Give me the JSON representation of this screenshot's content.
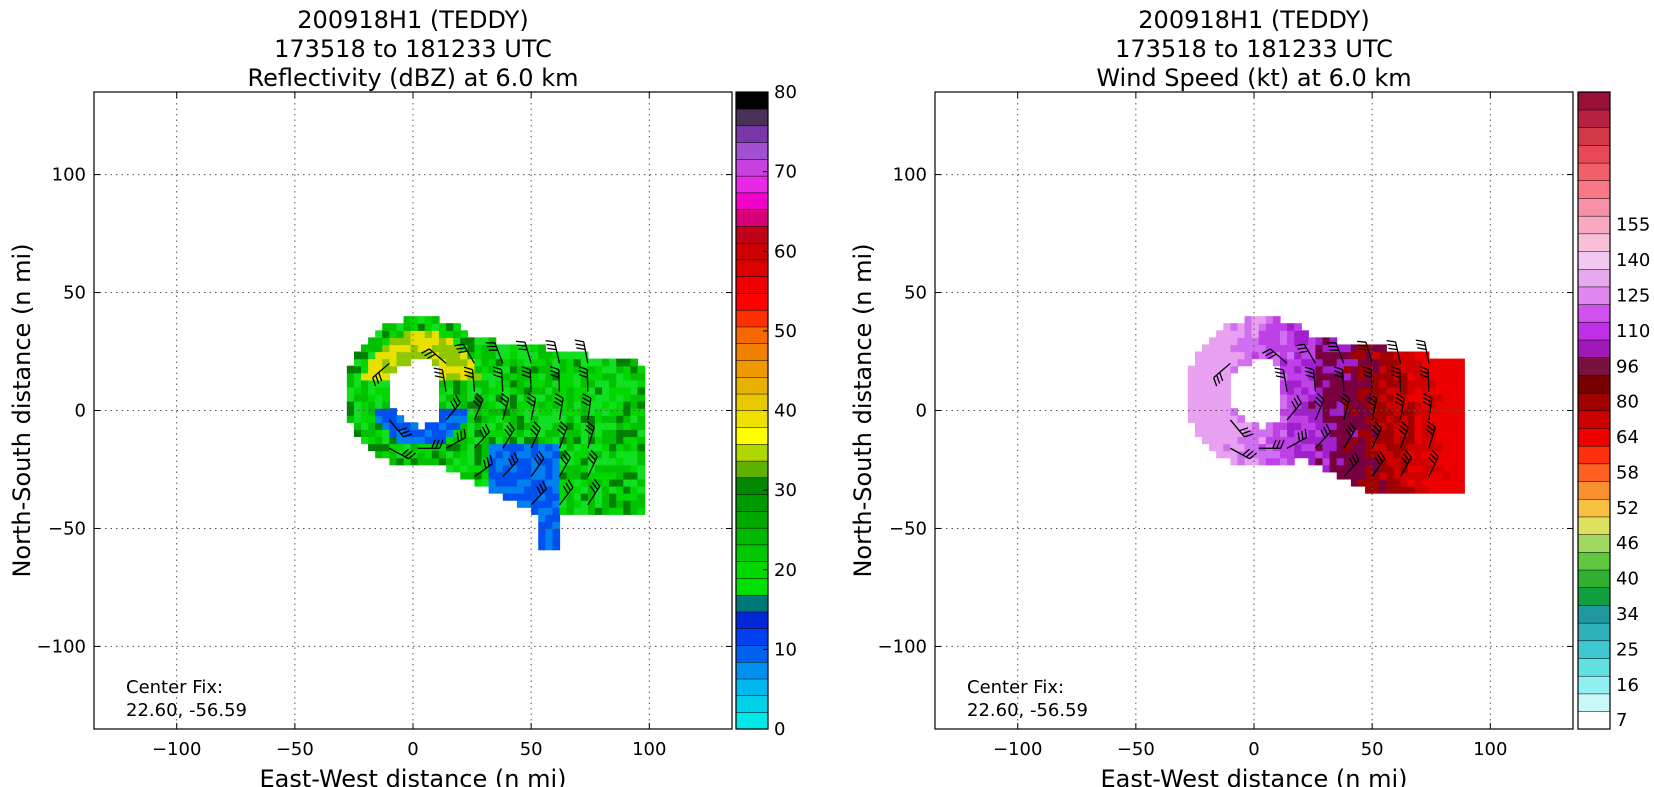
{
  "chart_data": [
    {
      "type": "heatmap",
      "title_lines": [
        "200918H1 (TEDDY)",
        "173518 to 181233 UTC",
        "Reflectivity (dBZ) at 6.0 km"
      ],
      "xlabel": "East-West distance (n mi)",
      "ylabel": "North-South distance (n mi)",
      "xlim": [
        -135,
        135
      ],
      "ylim": [
        -135,
        135
      ],
      "xticks": [
        -100,
        -50,
        0,
        50,
        100
      ],
      "yticks": [
        -100,
        -50,
        0,
        50,
        100
      ],
      "xtick_labels": [
        "−100",
        "−50",
        "0",
        "50",
        "100"
      ],
      "ytick_labels": [
        "−100",
        "−50",
        "0",
        "50",
        "100"
      ],
      "grid": true,
      "annotation": {
        "line1": "Center Fix:",
        "line2": "22.60, -56.59"
      },
      "colorbar": {
        "min": 0,
        "max": 80,
        "step": 2.5,
        "tick_values": [
          0,
          10,
          20,
          30,
          40,
          50,
          60,
          70,
          80
        ],
        "tick_labels": [
          "0",
          "10",
          "20",
          "30",
          "40",
          "50",
          "60",
          "70",
          "80"
        ],
        "colors": [
          "#00e8e8",
          "#00d0e8",
          "#00b8f0",
          "#0090f0",
          "#0060f0",
          "#0040f0",
          "#0028d8",
          "#007878",
          "#00e000",
          "#00d800",
          "#00c800",
          "#00b800",
          "#00a800",
          "#009800",
          "#008800",
          "#60b000",
          "#b0d800",
          "#ffff00",
          "#f0e000",
          "#e8c800",
          "#e8b000",
          "#f09800",
          "#f08000",
          "#f86800",
          "#ff3000",
          "#ff0000",
          "#ee0000",
          "#dd0000",
          "#cc0000",
          "#c00018",
          "#d80078",
          "#f000c8",
          "#e828e8",
          "#c840e0",
          "#a050d0",
          "#7838a8",
          "#483058",
          "#000000"
        ]
      },
      "field_colors": [
        "#00c000",
        "#00d800",
        "#10e020",
        "#0050f0",
        "#0080f0",
        "#e8e000",
        "#90c800",
        "#008000"
      ]
    },
    {
      "type": "heatmap",
      "title_lines": [
        "200918H1 (TEDDY)",
        "173518 to 181233 UTC",
        "Wind Speed (kt) at 6.0 km"
      ],
      "xlabel": "East-West distance (n mi)",
      "ylabel": "North-South distance (n mi)",
      "xlim": [
        -135,
        135
      ],
      "ylim": [
        -135,
        135
      ],
      "xticks": [
        -100,
        -50,
        0,
        50,
        100
      ],
      "yticks": [
        -100,
        -50,
        0,
        50,
        100
      ],
      "xtick_labels": [
        "−100",
        "−50",
        "0",
        "50",
        "100"
      ],
      "ytick_labels": [
        "−100",
        "−50",
        "0",
        "50",
        "100"
      ],
      "grid": true,
      "annotation": {
        "line1": "Center Fix:",
        "line2": "22.60, -56.59"
      },
      "colorbar": {
        "tick_labels": [
          "7",
          "16",
          "25",
          "34",
          "40",
          "46",
          "52",
          "58",
          "64",
          "80",
          "96",
          "110",
          "125",
          "140",
          "155"
        ],
        "tick_label_bins": [
          0,
          2,
          4,
          6,
          8,
          10,
          12,
          14,
          16,
          18,
          20,
          22,
          24,
          26,
          28
        ],
        "colors": [
          "#ffffff",
          "#c8f8f8",
          "#90f0f0",
          "#60e0e0",
          "#40c8d0",
          "#30b0b8",
          "#2098a0",
          "#10a040",
          "#30b030",
          "#60c840",
          "#a0d860",
          "#e0e060",
          "#f8c040",
          "#f89030",
          "#ff6020",
          "#ff3010",
          "#ee0000",
          "#cc0000",
          "#a00000",
          "#780000",
          "#781040",
          "#a018b8",
          "#c030e8",
          "#d050f0",
          "#e088f0",
          "#e8a8f0",
          "#f0c8f0",
          "#f8c0d8",
          "#f8a8c0",
          "#f890a8",
          "#f87888",
          "#f06068",
          "#e84858",
          "#d03848",
          "#b82040",
          "#981038"
        ]
      },
      "field_colors": [
        "#e8a0f0",
        "#d070f0",
        "#c040e8",
        "#a020d0",
        "#780040",
        "#a00000",
        "#d00000",
        "#ee0000"
      ]
    }
  ]
}
